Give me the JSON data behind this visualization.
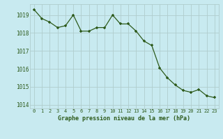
{
  "x": [
    0,
    1,
    2,
    3,
    4,
    5,
    6,
    7,
    8,
    9,
    10,
    11,
    12,
    13,
    14,
    15,
    16,
    17,
    18,
    19,
    20,
    21,
    22,
    23
  ],
  "y": [
    1019.3,
    1018.8,
    1018.6,
    1018.3,
    1018.4,
    1019.0,
    1018.1,
    1018.1,
    1018.3,
    1018.3,
    1019.0,
    1018.5,
    1018.5,
    1018.1,
    1017.55,
    1017.3,
    1016.05,
    1015.5,
    1015.1,
    1014.8,
    1014.7,
    1014.85,
    1014.5,
    1014.4
  ],
  "line_color": "#2d5a1b",
  "marker_color": "#2d5a1b",
  "bg_color": "#c8eaf0",
  "grid_color": "#b0cdcd",
  "tick_label_color": "#2d5a1b",
  "xlabel": "Graphe pression niveau de la mer (hPa)",
  "ylim": [
    1013.8,
    1019.6
  ],
  "yticks": [
    1014,
    1015,
    1016,
    1017,
    1018,
    1019
  ],
  "xticks": [
    0,
    1,
    2,
    3,
    4,
    5,
    6,
    7,
    8,
    9,
    10,
    11,
    12,
    13,
    14,
    15,
    16,
    17,
    18,
    19,
    20,
    21,
    22,
    23
  ]
}
